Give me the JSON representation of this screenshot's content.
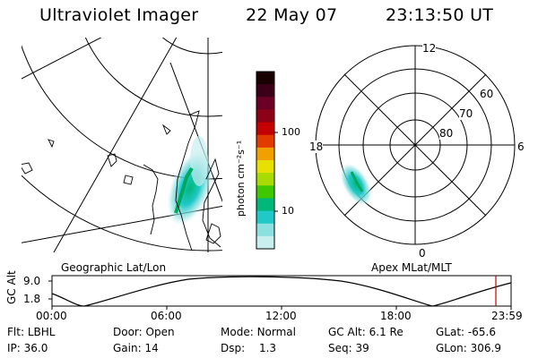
{
  "header": {
    "instrument": "Ultraviolet Imager",
    "date": "22 May 07",
    "time": "23:13:50 UT"
  },
  "colorbar": {
    "unit_label": "photon cm⁻²s⁻¹",
    "ticks": [
      "100",
      "10"
    ],
    "colors": [
      "#1a0000",
      "#3b0017",
      "#6a0026",
      "#8c0018",
      "#c40000",
      "#e23b00",
      "#f0a000",
      "#e8e000",
      "#a8dc00",
      "#3ec800",
      "#00b87a",
      "#20c8c8",
      "#8ce0e0",
      "#c8eeee"
    ]
  },
  "geo_panel": {
    "label": "Geographic Lat/Lon"
  },
  "polar_panel": {
    "label": "Apex  MLat/MLT",
    "mlt_labels": {
      "top": "12",
      "left": "18",
      "right": "6",
      "bottom": "0"
    },
    "lat_labels": [
      "60",
      "70",
      "80"
    ]
  },
  "altitude_plot": {
    "ylabel": "GC Alt",
    "yticks": [
      "9.0",
      "1.8"
    ],
    "xticks": [
      "00:00",
      "06:00",
      "12:00",
      "18:00",
      "23:59"
    ]
  },
  "status": {
    "flt_label": "Flt:",
    "flt_value": "LBHL",
    "ip_label": "IP:",
    "ip_value": "36.0",
    "door_label": "Door:",
    "door_value": "Open",
    "gain_label": "Gain:",
    "gain_value": "14",
    "mode_label": "Mode:",
    "mode_value": "Normal",
    "dsp_label": "Dsp:",
    "dsp_value": "1.3",
    "gcalt_label": "GC Alt:",
    "gcalt_value": "6.1 Re",
    "seq_label": "Seq:",
    "seq_value": "39",
    "glat_label": "GLat:",
    "glat_value": "-65.6",
    "glon_label": "GLon:",
    "glon_value": "306.9"
  },
  "accent": {
    "marker_color": "#c00000",
    "line_color": "#000000"
  }
}
